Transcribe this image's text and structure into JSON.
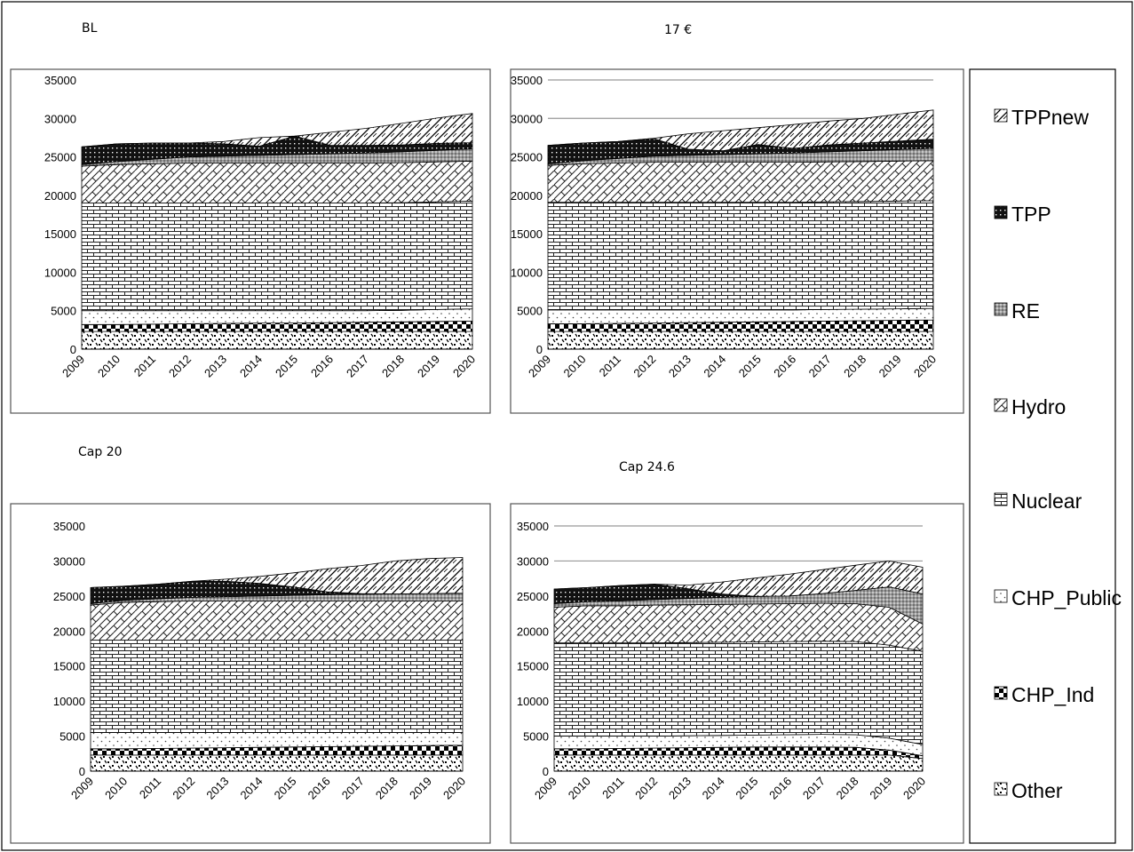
{
  "legend": [
    "TPPnew",
    "TPP",
    "RE",
    "Hydro",
    "Nuclear",
    "CHP_Public",
    "CHP_Ind",
    "Other"
  ],
  "chart_data": [
    {
      "type": "area",
      "title": "BL",
      "x": [
        2009,
        2010,
        2011,
        2012,
        2013,
        2014,
        2015,
        2016,
        2017,
        2018,
        2019,
        2020
      ],
      "ylim": [
        0,
        35000
      ],
      "yticks": [
        0,
        5000,
        10000,
        15000,
        20000,
        25000,
        30000,
        35000
      ],
      "grid": false,
      "series": [
        {
          "name": "Other",
          "values": [
            2300,
            2300,
            2300,
            2300,
            2300,
            2300,
            2300,
            2300,
            2300,
            2300,
            2300,
            2300
          ]
        },
        {
          "name": "CHP_Ind",
          "values": [
            900,
            900,
            950,
            1000,
            1050,
            1100,
            1100,
            1150,
            1200,
            1250,
            1300,
            1350
          ]
        },
        {
          "name": "CHP_Public",
          "values": [
            1800,
            1800,
            1750,
            1700,
            1650,
            1600,
            1600,
            1550,
            1500,
            1500,
            1550,
            1600
          ]
        },
        {
          "name": "Nuclear",
          "values": [
            14000,
            14000,
            14000,
            14000,
            14000,
            14000,
            14000,
            14000,
            14000,
            14000,
            14000,
            14000
          ]
        },
        {
          "name": "Hydro",
          "values": [
            4800,
            5000,
            5100,
            5200,
            5200,
            5200,
            5200,
            5200,
            5200,
            5200,
            5200,
            5200
          ]
        },
        {
          "name": "RE",
          "values": [
            200,
            400,
            600,
            800,
            900,
            1000,
            1100,
            1200,
            1300,
            1400,
            1500,
            1600
          ]
        },
        {
          "name": "TPP",
          "values": [
            2300,
            2300,
            2100,
            1800,
            1600,
            1200,
            2400,
            1100,
            1000,
            900,
            900,
            800
          ]
        },
        {
          "name": "TPPnew",
          "values": [
            0,
            0,
            0,
            0,
            300,
            1100,
            0,
            1700,
            2200,
            2800,
            3300,
            3800
          ]
        }
      ]
    },
    {
      "type": "area",
      "title": "17 €",
      "x": [
        2009,
        2010,
        2011,
        2012,
        2013,
        2014,
        2015,
        2016,
        2017,
        2018,
        2019,
        2020
      ],
      "ylim": [
        0,
        35000
      ],
      "yticks": [
        0,
        5000,
        10000,
        15000,
        20000,
        25000,
        30000,
        35000
      ],
      "grid": true,
      "series": [
        {
          "name": "Other",
          "values": [
            2300,
            2300,
            2300,
            2300,
            2300,
            2300,
            2300,
            2300,
            2300,
            2300,
            2300,
            2300
          ]
        },
        {
          "name": "CHP_Ind",
          "values": [
            1000,
            1000,
            1050,
            1100,
            1150,
            1200,
            1250,
            1300,
            1350,
            1400,
            1450,
            1500
          ]
        },
        {
          "name": "CHP_Public",
          "values": [
            1800,
            1800,
            1750,
            1700,
            1650,
            1600,
            1550,
            1500,
            1500,
            1500,
            1500,
            1500
          ]
        },
        {
          "name": "Nuclear",
          "values": [
            14000,
            14000,
            14000,
            14000,
            14000,
            14000,
            14000,
            14000,
            14000,
            14000,
            14000,
            14000
          ]
        },
        {
          "name": "Hydro",
          "values": [
            4800,
            5000,
            5100,
            5200,
            5200,
            5200,
            5200,
            5200,
            5200,
            5200,
            5200,
            5200
          ]
        },
        {
          "name": "RE",
          "values": [
            200,
            400,
            600,
            800,
            900,
            1000,
            1100,
            1200,
            1300,
            1400,
            1500,
            1600
          ]
        },
        {
          "name": "TPP",
          "values": [
            2400,
            2300,
            2200,
            2300,
            800,
            500,
            1200,
            600,
            900,
            1000,
            1100,
            1200
          ]
        },
        {
          "name": "TPPnew",
          "values": [
            0,
            0,
            0,
            0,
            2000,
            2600,
            2200,
            3100,
            3100,
            3200,
            3500,
            3800
          ]
        }
      ]
    },
    {
      "type": "area",
      "title": "Cap 20",
      "x": [
        2009,
        2010,
        2011,
        2012,
        2013,
        2014,
        2015,
        2016,
        2017,
        2018,
        2019,
        2020
      ],
      "ylim": [
        0,
        35000
      ],
      "yticks": [
        0,
        5000,
        10000,
        15000,
        20000,
        25000,
        30000,
        35000
      ],
      "grid": false,
      "series": [
        {
          "name": "Other",
          "values": [
            2300,
            2300,
            2300,
            2300,
            2300,
            2300,
            2300,
            2300,
            2300,
            2300,
            2300,
            2300
          ]
        },
        {
          "name": "CHP_Ind",
          "values": [
            900,
            900,
            950,
            1000,
            1050,
            1100,
            1150,
            1200,
            1250,
            1300,
            1350,
            1400
          ]
        },
        {
          "name": "CHP_Public",
          "values": [
            2300,
            2300,
            2250,
            2200,
            2150,
            2100,
            2050,
            2000,
            1950,
            1900,
            1850,
            1800
          ]
        },
        {
          "name": "Nuclear",
          "values": [
            13200,
            13200,
            13200,
            13200,
            13200,
            13200,
            13200,
            13200,
            13200,
            13200,
            13200,
            13200
          ]
        },
        {
          "name": "Hydro",
          "values": [
            5000,
            5400,
            5500,
            5600,
            5600,
            5600,
            5600,
            5600,
            5600,
            5600,
            5600,
            5600
          ]
        },
        {
          "name": "RE",
          "values": [
            200,
            300,
            400,
            500,
            600,
            700,
            800,
            900,
            950,
            1000,
            1050,
            1100
          ]
        },
        {
          "name": "TPP",
          "values": [
            2300,
            2000,
            2100,
            2300,
            2200,
            1800,
            1200,
            400,
            100,
            0,
            0,
            0
          ]
        },
        {
          "name": "TPPnew",
          "values": [
            0,
            0,
            0,
            0,
            300,
            1000,
            2000,
            3300,
            4000,
            4700,
            5000,
            5100
          ]
        }
      ]
    },
    {
      "type": "area",
      "title": "Cap 24.6",
      "x": [
        2009,
        2010,
        2011,
        2012,
        2013,
        2014,
        2015,
        2016,
        2017,
        2018,
        2019,
        2020
      ],
      "ylim": [
        0,
        35000
      ],
      "yticks": [
        0,
        5000,
        10000,
        15000,
        20000,
        25000,
        30000,
        35000
      ],
      "grid": true,
      "series": [
        {
          "name": "Other",
          "values": [
            2300,
            2300,
            2300,
            2300,
            2300,
            2300,
            2300,
            2300,
            2300,
            2300,
            2300,
            1800
          ]
        },
        {
          "name": "CHP_Ind",
          "values": [
            900,
            900,
            950,
            1000,
            1050,
            1100,
            1150,
            1150,
            1150,
            1100,
            700,
            400
          ]
        },
        {
          "name": "CHP_Public",
          "values": [
            1800,
            1800,
            1750,
            1700,
            1700,
            1700,
            1700,
            1750,
            1800,
            1800,
            1700,
            1600
          ]
        },
        {
          "name": "Nuclear",
          "values": [
            13300,
            13300,
            13300,
            13300,
            13300,
            13300,
            13300,
            13300,
            13300,
            13300,
            13300,
            13300
          ]
        },
        {
          "name": "Hydro",
          "values": [
            5100,
            5300,
            5300,
            5400,
            5400,
            5400,
            5400,
            5400,
            5400,
            5400,
            5400,
            3900
          ]
        },
        {
          "name": "RE",
          "values": [
            500,
            600,
            700,
            800,
            900,
            1000,
            1100,
            1100,
            1400,
            1900,
            2900,
            4300
          ]
        },
        {
          "name": "TPP",
          "values": [
            2100,
            2000,
            2200,
            2200,
            1400,
            500,
            0,
            0,
            0,
            0,
            0,
            0
          ]
        },
        {
          "name": "TPPnew",
          "values": [
            0,
            0,
            0,
            0,
            500,
            1700,
            2600,
            3100,
            3400,
            3600,
            3700,
            3800
          ]
        }
      ]
    }
  ]
}
